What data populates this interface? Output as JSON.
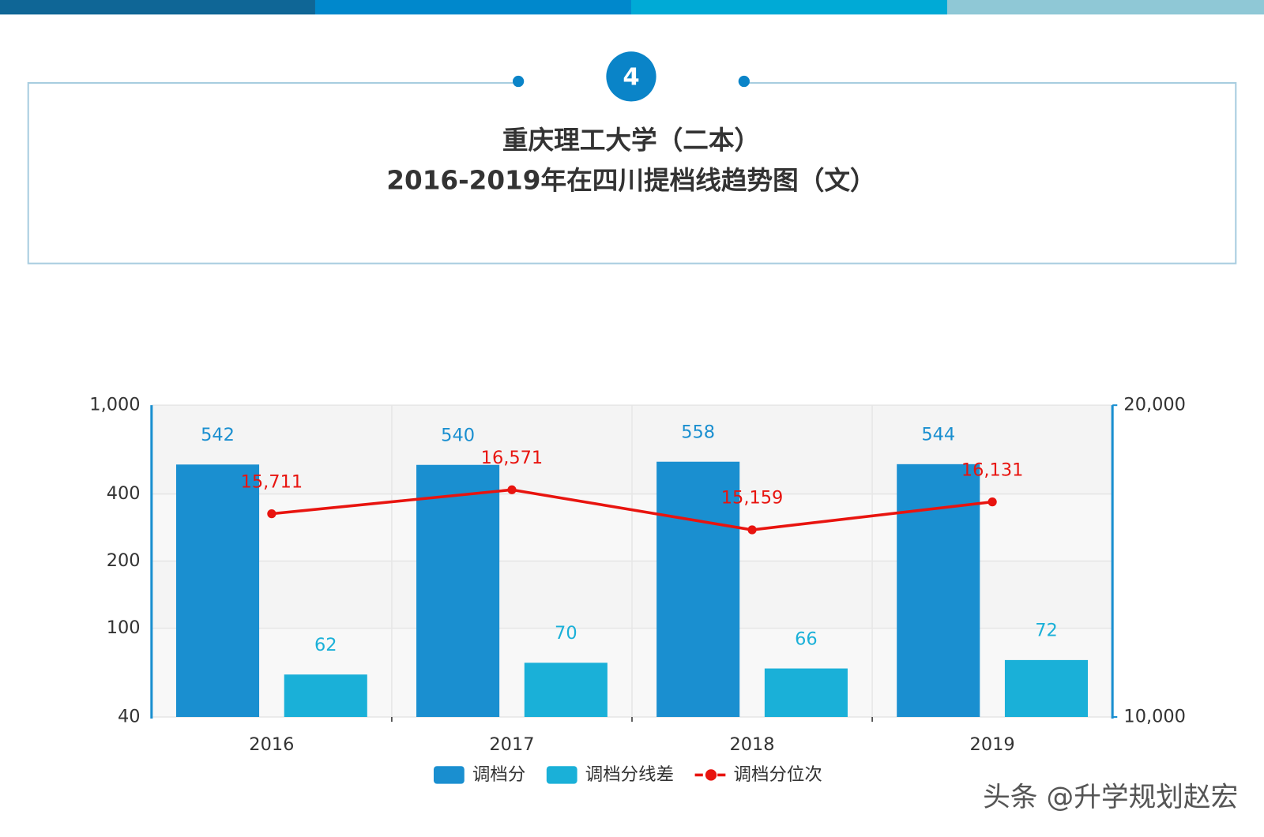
{
  "header": {
    "number": "4",
    "watermark": "头条 @升学规划赵宏"
  },
  "chart_data": {
    "type": "bar",
    "title": "重庆理工大学（二本）",
    "subtitle": "2016-2019年在四川提档线趋势图（文）",
    "categories": [
      "2016",
      "2017",
      "2018",
      "2019"
    ],
    "series": [
      {
        "name": "调档分",
        "type": "bar",
        "color": "#1a8fd0",
        "values": [
          542,
          540,
          558,
          544
        ]
      },
      {
        "name": "调档分线差",
        "type": "bar",
        "color": "#1ab0d8",
        "values": [
          62,
          70,
          66,
          72
        ]
      },
      {
        "name": "调档分位次",
        "type": "line",
        "axis": "y2",
        "color": "#e8140f",
        "values": [
          15711,
          16571,
          15159,
          16131
        ],
        "value_labels": [
          "15,711",
          "16,571",
          "15,159",
          "16,131"
        ]
      }
    ],
    "ylim": [
      40,
      1000
    ],
    "yscale": "log",
    "yticks": [
      40,
      100,
      200,
      400,
      {
        "value": 1000,
        "label": "1,000"
      }
    ],
    "y2lim": [
      10000,
      20000
    ],
    "y2scale": "log",
    "y2ticks": [
      {
        "value": 10000,
        "label": "10,000"
      },
      {
        "value": 20000,
        "label": "20,000"
      }
    ],
    "grid": true
  }
}
